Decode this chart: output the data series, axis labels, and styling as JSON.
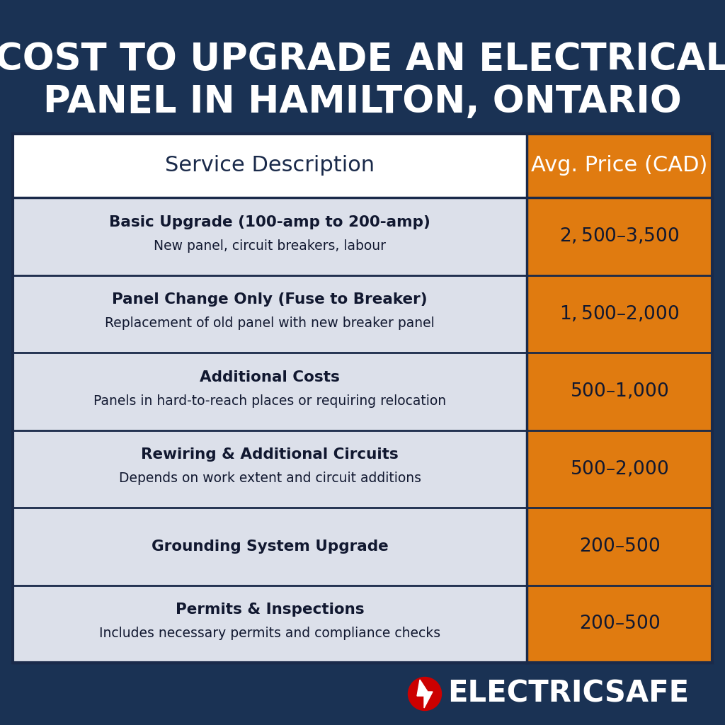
{
  "title_line1": "COST TO UPGRADE AN ELECTRICAL",
  "title_line2": "PANEL IN HAMILTON, ONTARIO",
  "bg_color": "#1a3254",
  "header_col1": "Service Description",
  "header_col2": "Avg. Price (CAD)",
  "header_bg_col1": "#ffffff",
  "header_bg_col2": "#d4750a",
  "header_text_color_col1": "#1a2a4a",
  "orange_color": "#e07b10",
  "row_bg_light": "#dce0ea",
  "row_divider_color": "#1a2a4a",
  "rows": [
    {
      "bold": "Basic Upgrade (100-amp to 200-amp)",
      "normal": "New panel, circuit breakers, labour",
      "price": "$2,500 – $3,500"
    },
    {
      "bold": "Panel Change Only (Fuse to Breaker)",
      "normal": "Replacement of old panel with new breaker panel",
      "price": "$1,500 – $2,000"
    },
    {
      "bold": "Additional Costs",
      "normal": "Panels in hard-to-reach places or requiring relocation",
      "price": "$500 – $1,000"
    },
    {
      "bold": "Rewiring & Additional Circuits",
      "normal": "Depends on work extent and circuit additions",
      "price": "$500 – $2,000"
    },
    {
      "bold": "Grounding System Upgrade",
      "normal": "",
      "price": "$200 – $500"
    },
    {
      "bold": "Permits & Inspections",
      "normal": "Includes necessary permits and compliance checks",
      "price": "$200 – $500"
    }
  ],
  "brand_name": "ELECTRICSAFE",
  "brand_color": "#ffffff",
  "lightning_red": "#cc0000"
}
